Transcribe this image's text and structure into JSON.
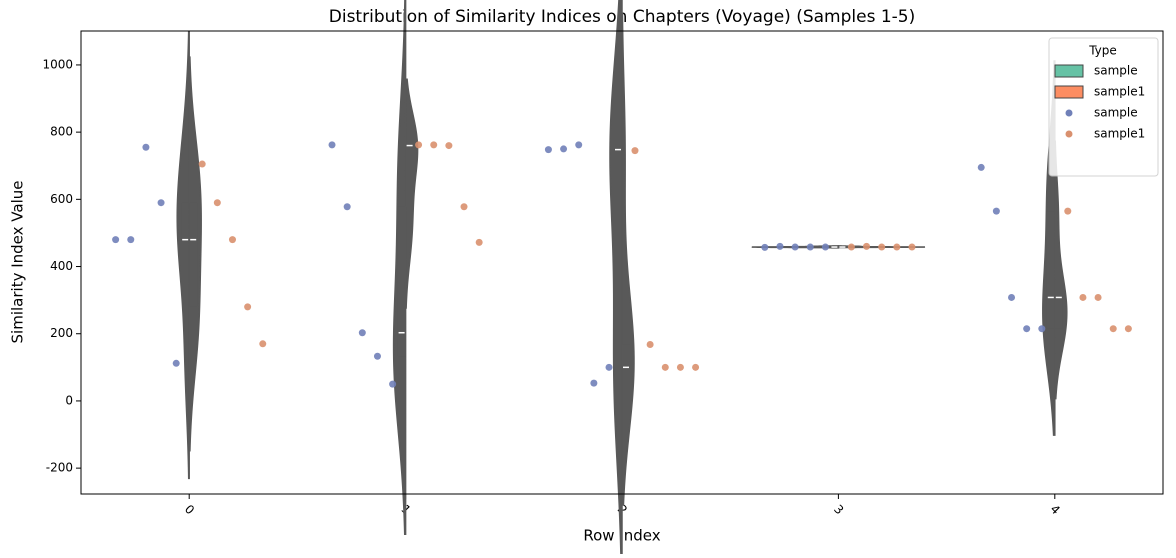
{
  "chart_data": {
    "type": "violin",
    "title": "Distribution of Similarity Indices on Chapters (Voyage) (Samples 1-5)",
    "x_label": "Row Index",
    "y_label": "Similarity Index Value",
    "categories": [
      "0",
      "1",
      "2",
      "3",
      "4"
    ],
    "legend_title": "Type",
    "legend_position": "upper right",
    "series": [
      {
        "name": "sample",
        "color": "#66c2a5",
        "point_color": "#7080b8",
        "values": [
          [
            480,
            480,
            755,
            590,
            112
          ],
          [
            762,
            578,
            203,
            133,
            50
          ],
          [
            748,
            750,
            762,
            53,
            100
          ],
          [
            457,
            460,
            458,
            458,
            458
          ],
          [
            695,
            565,
            308,
            215,
            215
          ]
        ]
      },
      {
        "name": "sample1",
        "color": "#fc8d62",
        "point_color": "#d9906e",
        "values": [
          [
            705,
            590,
            480,
            280,
            170
          ],
          [
            762,
            762,
            760,
            578,
            472
          ],
          [
            745,
            168,
            100,
            100,
            100
          ],
          [
            458,
            460,
            458,
            458,
            458
          ],
          [
            565,
            308,
            308,
            215,
            215
          ]
        ]
      }
    ],
    "ylim": [
      -277,
      1101
    ],
    "yticks": [
      -200,
      0,
      200,
      400,
      600,
      800,
      1000
    ]
  }
}
